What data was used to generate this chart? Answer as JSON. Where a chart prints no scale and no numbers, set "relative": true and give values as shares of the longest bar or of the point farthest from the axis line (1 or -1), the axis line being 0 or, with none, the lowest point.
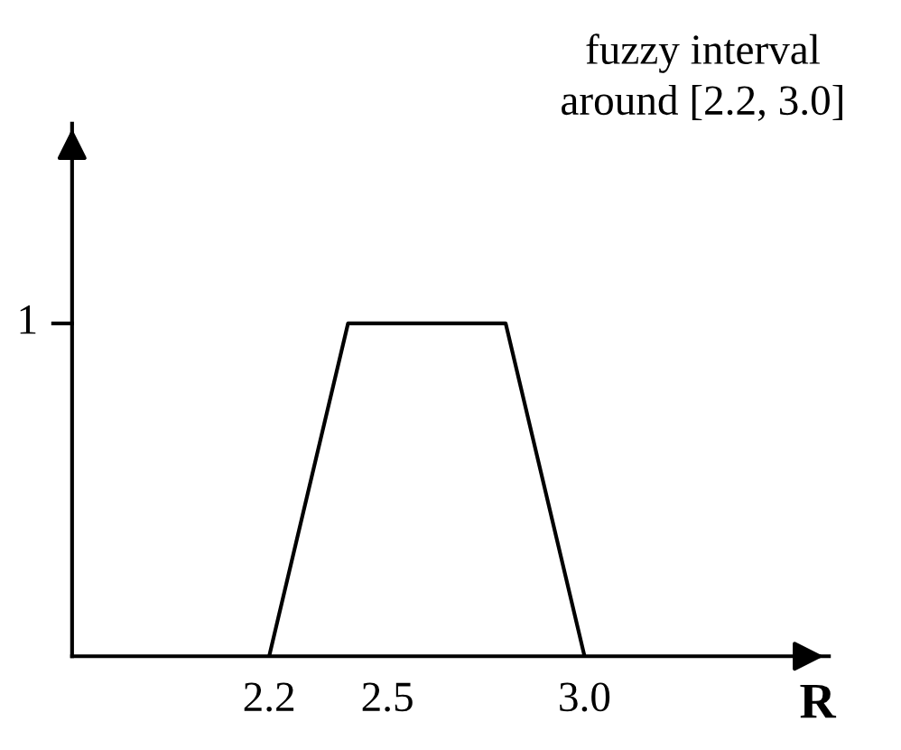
{
  "chart_data": {
    "type": "line",
    "x": [
      2.2,
      2.4,
      2.8,
      3.0
    ],
    "series": [
      {
        "color": "#000000",
        "values": [
          0,
          1,
          1,
          0
        ]
      }
    ],
    "xlim": [
      1.7,
      3.62
    ],
    "relative": true,
    "xticks": [
      2.2,
      2.5,
      {
        "value": 3.0,
        "label": "3.0"
      }
    ],
    "xlabel": "R",
    "annotations": [
      "fuzzy interval\naround [2.2, 3.0]",
      "1"
    ],
    "grid": false,
    "legend": false,
    "marker": "none",
    "line_style": "solid"
  }
}
